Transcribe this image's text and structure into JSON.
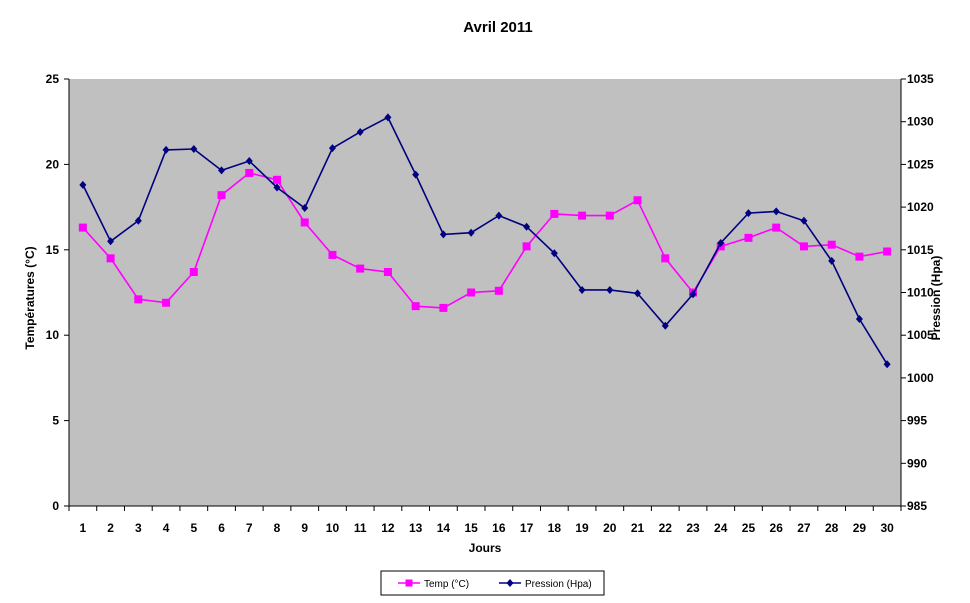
{
  "chart_data": {
    "type": "line",
    "title": "Avril 2011",
    "xlabel": "Jours",
    "ylabel_left": "Températures (°C)",
    "ylabel_right": "Pression (Hpa)",
    "categories": [
      "1",
      "2",
      "3",
      "4",
      "5",
      "6",
      "7",
      "8",
      "9",
      "10",
      "11",
      "12",
      "13",
      "14",
      "15",
      "16",
      "17",
      "18",
      "19",
      "20",
      "21",
      "22",
      "23",
      "24",
      "25",
      "26",
      "27",
      "28",
      "29",
      "30"
    ],
    "y_left": {
      "min": 0,
      "max": 25,
      "ticks": [
        0,
        5,
        10,
        15,
        20,
        25
      ]
    },
    "y_right": {
      "min": 985,
      "max": 1035,
      "ticks": [
        985,
        990,
        995,
        1000,
        1005,
        1010,
        1015,
        1020,
        1025,
        1030,
        1035
      ]
    },
    "grid": false,
    "legend_position": "bottom",
    "plot_background": "#C0C0C0",
    "series": [
      {
        "name": "Temp (°C)",
        "axis": "left",
        "color": "#FF00FF",
        "marker": "square",
        "values": [
          16.3,
          14.5,
          12.1,
          11.9,
          13.7,
          18.2,
          19.5,
          19.1,
          16.6,
          14.7,
          13.9,
          13.7,
          11.7,
          11.6,
          12.5,
          12.6,
          15.2,
          17.1,
          17.0,
          17.0,
          17.9,
          14.5,
          12.5,
          15.2,
          15.7,
          16.3,
          15.2,
          15.3,
          14.6,
          14.9
        ]
      },
      {
        "name": "Pression (Hpa)",
        "axis": "right",
        "color": "#000080",
        "marker": "diamond",
        "values": [
          1022.6,
          1016.0,
          1018.4,
          1026.7,
          1026.8,
          1024.3,
          1025.4,
          1022.3,
          1019.9,
          1026.9,
          1028.8,
          1030.5,
          1023.8,
          1016.8,
          1017.0,
          1019.0,
          1017.7,
          1014.6,
          1010.3,
          1010.3,
          1009.9,
          1006.1,
          1009.8,
          1015.8,
          1019.3,
          1019.5,
          1018.4,
          1013.7,
          1006.9,
          1001.6
        ]
      }
    ]
  }
}
